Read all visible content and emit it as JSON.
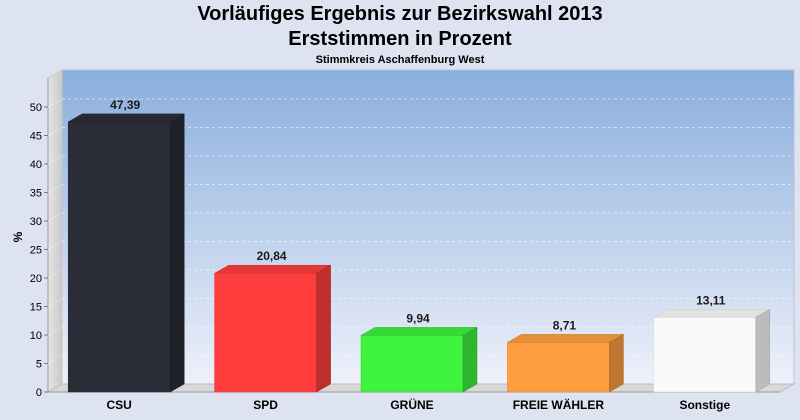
{
  "chart_data": {
    "type": "bar",
    "title": "Vorläufiges Ergebnis zur Bezirkswahl 2013",
    "title2": "Erststimmen in Prozent",
    "subtitle": "Stimmkreis Aschaffenburg West",
    "ylabel": "%",
    "ylim": [
      0,
      50
    ],
    "yticks": [
      "0",
      "5",
      "10",
      "15",
      "20",
      "25",
      "30",
      "35",
      "40",
      "45",
      "50"
    ],
    "categories": [
      "CSU",
      "SPD",
      "GRÜNE",
      "FREIE WÄHLER",
      "Sonstige"
    ],
    "values": [
      47.39,
      20.84,
      9.94,
      8.71,
      13.11
    ],
    "value_labels": [
      "47,39",
      "20,84",
      "9,94",
      "8,71",
      "13,11"
    ],
    "colors": [
      "#2a2d38",
      "#ff3c3c",
      "#3ef23e",
      "#ff9e3e",
      "#fafafa"
    ],
    "grid": true,
    "style": "3d"
  }
}
